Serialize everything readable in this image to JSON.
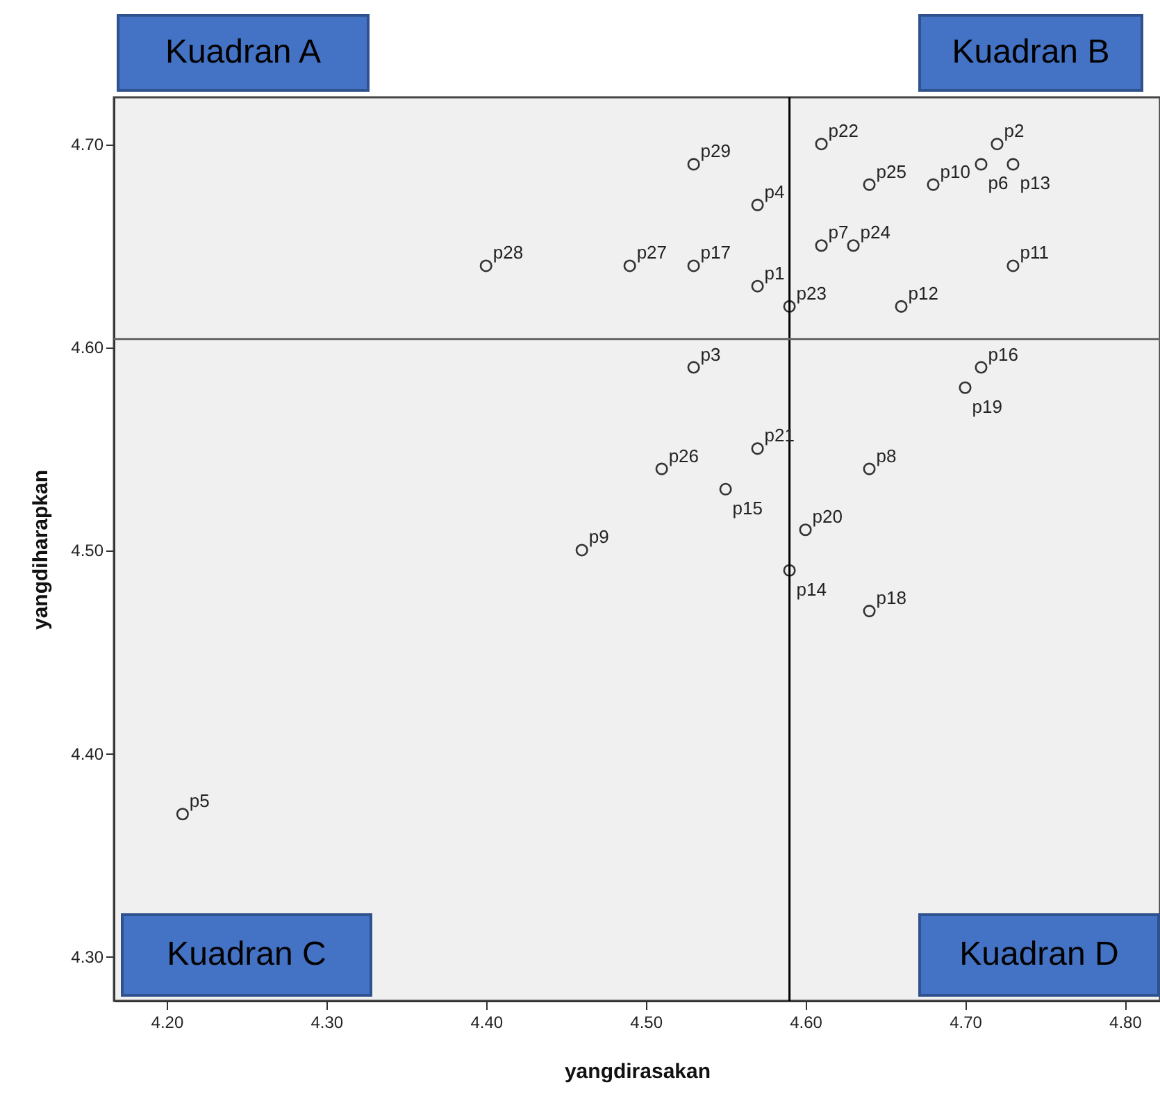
{
  "chart_data": {
    "type": "scatter",
    "xlabel": "yangdirasakan",
    "ylabel": "yangdiharapkan",
    "x": [
      4.53,
      4.4,
      4.49,
      4.53,
      4.57,
      4.57,
      4.59,
      4.61,
      4.64,
      4.68,
      4.72,
      4.71,
      4.73,
      4.61,
      4.63,
      4.73,
      4.66,
      4.71,
      4.7,
      4.53,
      4.57,
      4.51,
      4.55,
      4.64,
      4.6,
      4.46,
      4.59,
      4.64,
      4.21
    ],
    "series": [
      {
        "color": "#333333",
        "values": [
          4.69,
          4.64,
          4.64,
          4.64,
          4.67,
          4.63,
          4.62,
          4.7,
          4.68,
          4.68,
          4.7,
          4.69,
          4.69,
          4.65,
          4.65,
          4.64,
          4.62,
          4.59,
          4.58,
          4.59,
          4.55,
          4.54,
          4.53,
          4.54,
          4.51,
          4.5,
          4.49,
          4.47,
          4.37
        ]
      }
    ],
    "xlim": [
      4.167,
      4.822
    ],
    "ylim": [
      4.278,
      4.723
    ],
    "xticks": [
      {
        "value": 4.2,
        "label": "4.20"
      },
      {
        "value": 4.3,
        "label": "4.30"
      },
      {
        "value": 4.4,
        "label": "4.40"
      },
      {
        "value": 4.5,
        "label": "4.50"
      },
      {
        "value": 4.6,
        "label": "4.60"
      },
      {
        "value": 4.7,
        "label": "4.70"
      },
      {
        "value": 4.8,
        "label": "4.80"
      }
    ],
    "yticks": [
      {
        "value": 4.3,
        "label": "4.30"
      },
      {
        "value": 4.4,
        "label": "4.40"
      },
      {
        "value": 4.5,
        "label": "4.50"
      },
      {
        "value": 4.6,
        "label": "4.60"
      },
      {
        "value": 4.7,
        "label": "4.70"
      }
    ],
    "ref_lines": [
      {
        "axis": "x",
        "value": 4.59,
        "color": "#000000"
      },
      {
        "axis": "y",
        "value": 4.604,
        "color": "#666666"
      }
    ],
    "marker": "circle",
    "grid": false,
    "annotations": [
      "Kuadran A",
      "Kuadran B",
      "Kuadran C",
      "Kuadran D",
      {
        "text": "p29",
        "x": 4.53,
        "y": 4.69
      },
      {
        "text": "p28",
        "x": 4.4,
        "y": 4.64
      },
      {
        "text": "p27",
        "x": 4.49,
        "y": 4.64
      },
      {
        "text": "p17",
        "x": 4.53,
        "y": 4.64
      },
      {
        "text": "p4",
        "x": 4.57,
        "y": 4.67
      },
      {
        "text": "p1",
        "x": 4.57,
        "y": 4.63
      },
      {
        "text": "p23",
        "x": 4.59,
        "y": 4.62
      },
      {
        "text": "p22",
        "x": 4.61,
        "y": 4.7
      },
      {
        "text": "p25",
        "x": 4.64,
        "y": 4.68
      },
      {
        "text": "p10",
        "x": 4.68,
        "y": 4.68
      },
      {
        "text": "p2",
        "x": 4.72,
        "y": 4.7
      },
      {
        "text": "p6",
        "x": 4.71,
        "y": 4.69
      },
      {
        "text": "p13",
        "x": 4.73,
        "y": 4.69
      },
      {
        "text": "p7",
        "x": 4.61,
        "y": 4.65
      },
      {
        "text": "p24",
        "x": 4.63,
        "y": 4.65
      },
      {
        "text": "p11",
        "x": 4.73,
        "y": 4.64
      },
      {
        "text": "p12",
        "x": 4.66,
        "y": 4.62
      },
      {
        "text": "p16",
        "x": 4.71,
        "y": 4.59
      },
      {
        "text": "p19",
        "x": 4.7,
        "y": 4.58
      },
      {
        "text": "p3",
        "x": 4.53,
        "y": 4.59
      },
      {
        "text": "p21",
        "x": 4.57,
        "y": 4.55
      },
      {
        "text": "p26",
        "x": 4.51,
        "y": 4.54
      },
      {
        "text": "p15",
        "x": 4.55,
        "y": 4.53
      },
      {
        "text": "p8",
        "x": 4.64,
        "y": 4.54
      },
      {
        "text": "p20",
        "x": 4.6,
        "y": 4.51
      },
      {
        "text": "p9",
        "x": 4.46,
        "y": 4.5
      },
      {
        "text": "p14",
        "x": 4.59,
        "y": 4.49
      },
      {
        "text": "p18",
        "x": 4.64,
        "y": 4.47
      },
      {
        "text": "p5",
        "x": 4.21,
        "y": 4.37
      }
    ]
  }
}
